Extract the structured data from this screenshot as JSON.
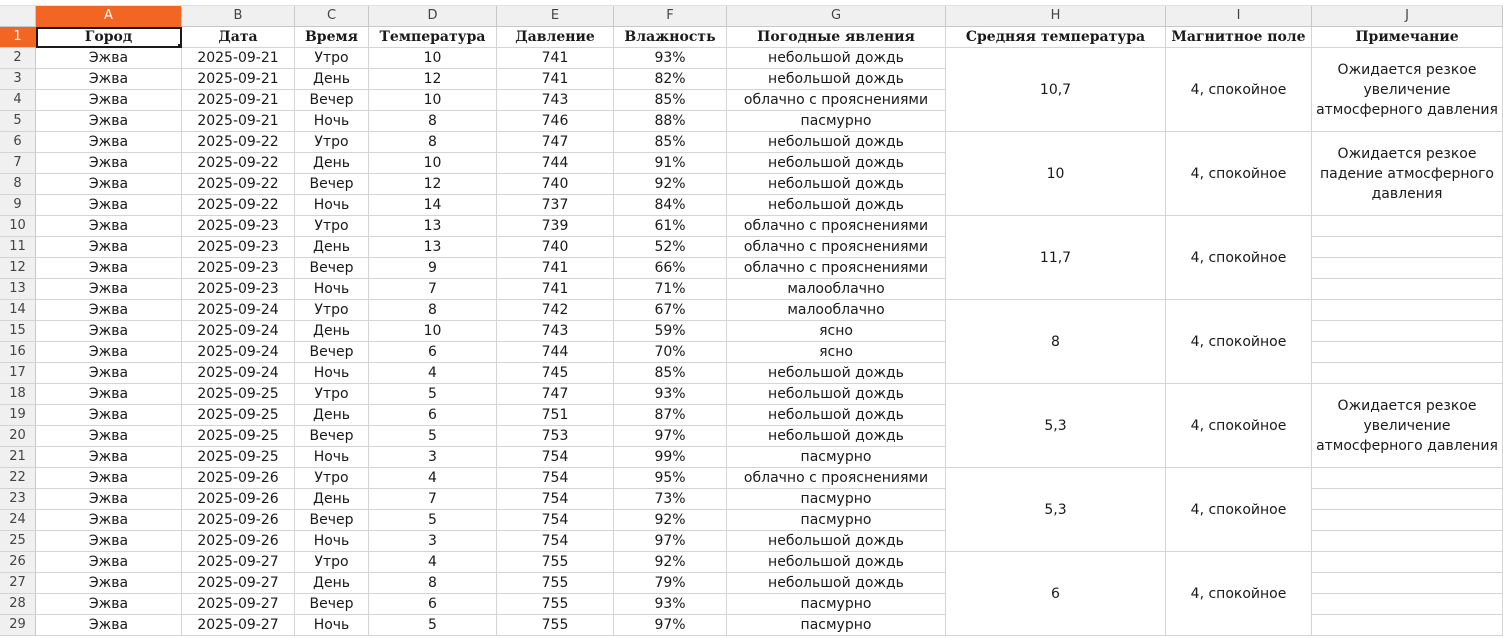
{
  "sheet": {
    "columns": [
      "A",
      "B",
      "C",
      "D",
      "E",
      "F",
      "G",
      "H",
      "I",
      "J"
    ],
    "active_column": "A",
    "active_row": 1,
    "headers": [
      "Город",
      "Дата",
      "Время",
      "Температура",
      "Давление",
      "Влажность",
      "Погодные явления",
      "Средняя температура",
      "Магнитное поле",
      "Примечание"
    ],
    "rows": [
      [
        "Эжва",
        "2025-09-21",
        "Утро",
        "10",
        "741",
        "93%",
        "небольшой дождь"
      ],
      [
        "Эжва",
        "2025-09-21",
        "День",
        "12",
        "741",
        "82%",
        "небольшой дождь"
      ],
      [
        "Эжва",
        "2025-09-21",
        "Вечер",
        "10",
        "743",
        "85%",
        "облачно с прояснениями"
      ],
      [
        "Эжва",
        "2025-09-21",
        "Ночь",
        "8",
        "746",
        "88%",
        "пасмурно"
      ],
      [
        "Эжва",
        "2025-09-22",
        "Утро",
        "8",
        "747",
        "85%",
        "небольшой дождь"
      ],
      [
        "Эжва",
        "2025-09-22",
        "День",
        "10",
        "744",
        "91%",
        "небольшой дождь"
      ],
      [
        "Эжва",
        "2025-09-22",
        "Вечер",
        "12",
        "740",
        "92%",
        "небольшой дождь"
      ],
      [
        "Эжва",
        "2025-09-22",
        "Ночь",
        "14",
        "737",
        "84%",
        "небольшой дождь"
      ],
      [
        "Эжва",
        "2025-09-23",
        "Утро",
        "13",
        "739",
        "61%",
        "облачно с прояснениями"
      ],
      [
        "Эжва",
        "2025-09-23",
        "День",
        "13",
        "740",
        "52%",
        "облачно с прояснениями"
      ],
      [
        "Эжва",
        "2025-09-23",
        "Вечер",
        "9",
        "741",
        "66%",
        "облачно с прояснениями"
      ],
      [
        "Эжва",
        "2025-09-23",
        "Ночь",
        "7",
        "741",
        "71%",
        "малооблачно"
      ],
      [
        "Эжва",
        "2025-09-24",
        "Утро",
        "8",
        "742",
        "67%",
        "малооблачно"
      ],
      [
        "Эжва",
        "2025-09-24",
        "День",
        "10",
        "743",
        "59%",
        "ясно"
      ],
      [
        "Эжва",
        "2025-09-24",
        "Вечер",
        "6",
        "744",
        "70%",
        "ясно"
      ],
      [
        "Эжва",
        "2025-09-24",
        "Ночь",
        "4",
        "745",
        "85%",
        "небольшой дождь"
      ],
      [
        "Эжва",
        "2025-09-25",
        "Утро",
        "5",
        "747",
        "93%",
        "небольшой дождь"
      ],
      [
        "Эжва",
        "2025-09-25",
        "День",
        "6",
        "751",
        "87%",
        "небольшой дождь"
      ],
      [
        "Эжва",
        "2025-09-25",
        "Вечер",
        "5",
        "753",
        "97%",
        "небольшой дождь"
      ],
      [
        "Эжва",
        "2025-09-25",
        "Ночь",
        "3",
        "754",
        "99%",
        "пасмурно"
      ],
      [
        "Эжва",
        "2025-09-26",
        "Утро",
        "4",
        "754",
        "95%",
        "облачно с прояснениями"
      ],
      [
        "Эжва",
        "2025-09-26",
        "День",
        "7",
        "754",
        "73%",
        "пасмурно"
      ],
      [
        "Эжва",
        "2025-09-26",
        "Вечер",
        "5",
        "754",
        "92%",
        "пасмурно"
      ],
      [
        "Эжва",
        "2025-09-26",
        "Ночь",
        "3",
        "754",
        "97%",
        "небольшой дождь"
      ],
      [
        "Эжва",
        "2025-09-27",
        "Утро",
        "4",
        "755",
        "92%",
        "небольшой дождь"
      ],
      [
        "Эжва",
        "2025-09-27",
        "День",
        "8",
        "755",
        "79%",
        "небольшой дождь"
      ],
      [
        "Эжва",
        "2025-09-27",
        "Вечер",
        "6",
        "755",
        "93%",
        "пасмурно"
      ],
      [
        "Эжва",
        "2025-09-27",
        "Ночь",
        "5",
        "755",
        "97%",
        "пасмурно"
      ]
    ],
    "daily": [
      {
        "avg_temp": "10,7",
        "magnetic": "4, спокойное",
        "note": "Ожидается резкое увеличение атмосферного давления"
      },
      {
        "avg_temp": "10",
        "magnetic": "4, спокойное",
        "note": "Ожидается резкое падение атмосферного давления"
      },
      {
        "avg_temp": "11,7",
        "magnetic": "4, спокойное",
        "note": ""
      },
      {
        "avg_temp": "8",
        "magnetic": "4, спокойное",
        "note": ""
      },
      {
        "avg_temp": "5,3",
        "magnetic": "4, спокойное",
        "note": "Ожидается резкое увеличение атмосферного давления"
      },
      {
        "avg_temp": "5,3",
        "magnetic": "4, спокойное",
        "note": ""
      },
      {
        "avg_temp": "6",
        "magnetic": "4, спокойное",
        "note": ""
      }
    ]
  },
  "colors": {
    "active_header": "#f26522",
    "header_bg": "#f0f0f0",
    "grid": "#d4d4d4"
  }
}
